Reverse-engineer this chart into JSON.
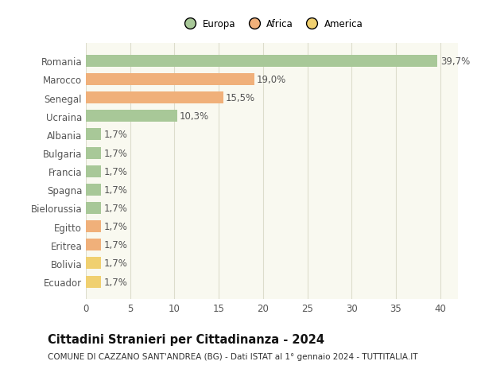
{
  "categories": [
    "Romania",
    "Marocco",
    "Senegal",
    "Ucraina",
    "Albania",
    "Bulgaria",
    "Francia",
    "Spagna",
    "Bielorussia",
    "Egitto",
    "Eritrea",
    "Bolivia",
    "Ecuador"
  ],
  "values": [
    39.7,
    19.0,
    15.5,
    10.3,
    1.7,
    1.7,
    1.7,
    1.7,
    1.7,
    1.7,
    1.7,
    1.7,
    1.7
  ],
  "colors": [
    "#a8c898",
    "#f0b07a",
    "#f0b07a",
    "#a8c898",
    "#a8c898",
    "#a8c898",
    "#a8c898",
    "#a8c898",
    "#a8c898",
    "#f0b07a",
    "#f0b07a",
    "#f0d070",
    "#f0d070"
  ],
  "labels": [
    "39,7%",
    "19,0%",
    "15,5%",
    "10,3%",
    "1,7%",
    "1,7%",
    "1,7%",
    "1,7%",
    "1,7%",
    "1,7%",
    "1,7%",
    "1,7%",
    "1,7%"
  ],
  "legend_labels": [
    "Europa",
    "Africa",
    "America"
  ],
  "legend_colors": [
    "#a8c898",
    "#f0b07a",
    "#f0d070"
  ],
  "title": "Cittadini Stranieri per Cittadinanza - 2024",
  "subtitle": "COMUNE DI CAZZANO SANT'ANDREA (BG) - Dati ISTAT al 1° gennaio 2024 - TUTTITALIA.IT",
  "xlim": [
    0,
    42
  ],
  "xticks": [
    0,
    5,
    10,
    15,
    20,
    25,
    30,
    35,
    40
  ],
  "background_color": "#ffffff",
  "plot_bg_color": "#f9f9f0",
  "grid_color": "#ddddcc",
  "bar_height": 0.65,
  "label_fontsize": 8.5,
  "tick_fontsize": 8.5,
  "title_fontsize": 10.5,
  "subtitle_fontsize": 7.5
}
